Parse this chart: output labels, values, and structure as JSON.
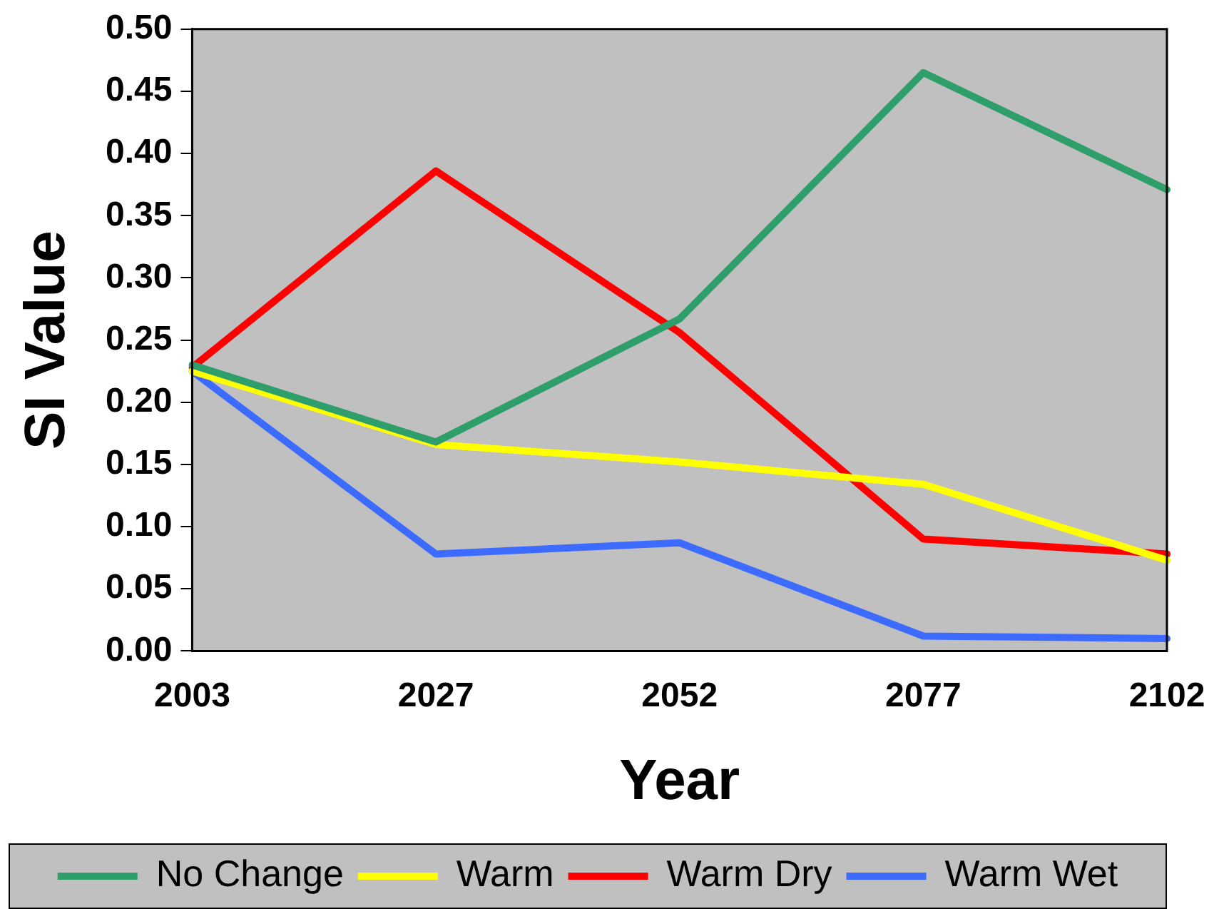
{
  "chart_data": {
    "type": "line",
    "xlabel": "Year",
    "ylabel": "SI Value",
    "categories": [
      "2003",
      "2027",
      "2052",
      "2077",
      "2102"
    ],
    "series": [
      {
        "name": "No Change",
        "color": "#2e9e6b",
        "values": [
          0.23,
          0.168,
          0.267,
          0.465,
          0.371
        ]
      },
      {
        "name": "Warm",
        "color": "#ffff00",
        "values": [
          0.225,
          0.166,
          0.152,
          0.134,
          0.073
        ]
      },
      {
        "name": "Warm Dry",
        "color": "#ff0000",
        "values": [
          0.228,
          0.386,
          0.256,
          0.09,
          0.078
        ]
      },
      {
        "name": "Warm Wet",
        "color": "#3d6bff",
        "values": [
          0.225,
          0.078,
          0.087,
          0.012,
          0.01
        ]
      }
    ],
    "ylim": [
      0,
      0.5
    ],
    "yticks": [
      {
        "value": 0,
        "label": "0.00"
      },
      {
        "value": 0.05,
        "label": "0.05"
      },
      {
        "value": 0.1,
        "label": "0.10"
      },
      {
        "value": 0.15,
        "label": "0.15"
      },
      {
        "value": 0.2,
        "label": "0.20"
      },
      {
        "value": 0.25,
        "label": "0.25"
      },
      {
        "value": 0.3,
        "label": "0.30"
      },
      {
        "value": 0.35,
        "label": "0.35"
      },
      {
        "value": 0.4,
        "label": "0.40"
      },
      {
        "value": 0.45,
        "label": "0.45"
      },
      {
        "value": 0.5,
        "label": "0.50"
      }
    ],
    "grid": false,
    "legend": "bottom"
  }
}
